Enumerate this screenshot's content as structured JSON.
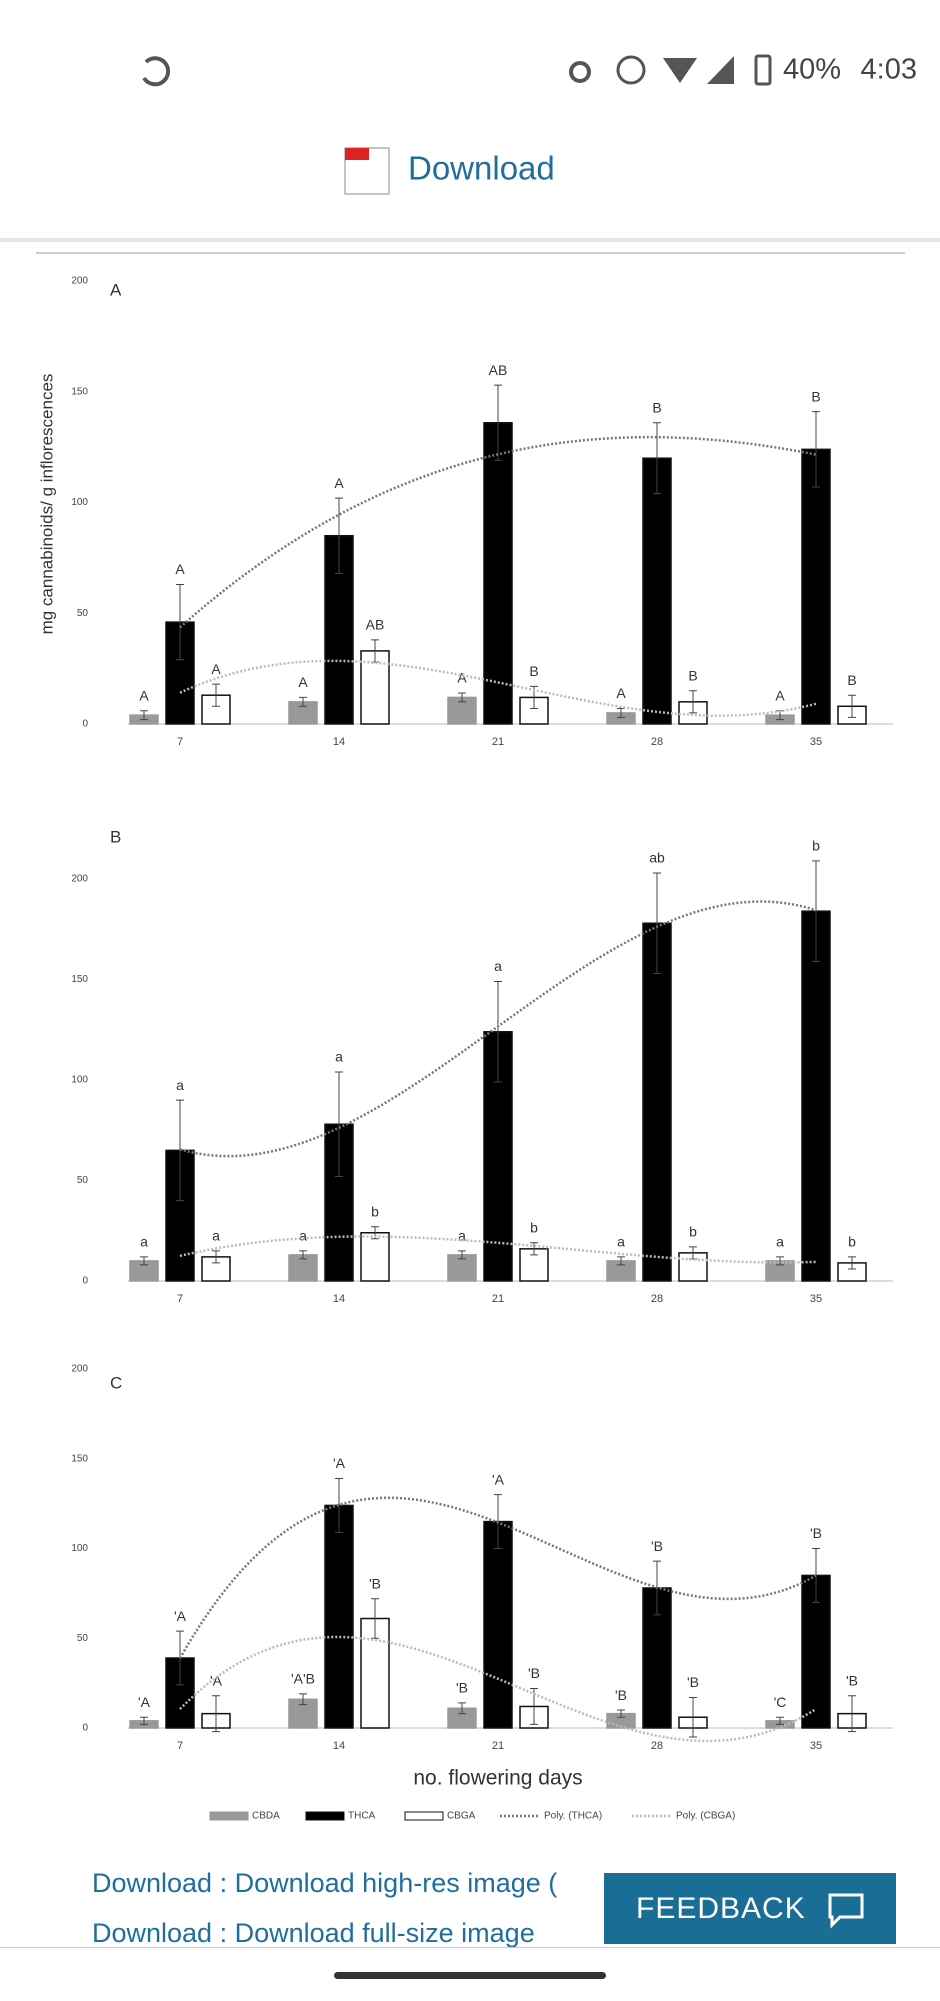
{
  "status_bar": {
    "battery": "40%",
    "time": "4:03"
  },
  "header": {
    "download": "Download"
  },
  "figure": {
    "type": "bar",
    "y_axis_label": "mg cannabinoids/ g inflorescences",
    "x_axis_label": "no. flowering days",
    "legend": [
      "CBDA",
      "THCA",
      "CBGA",
      "Poly. (THCA)",
      "Poly. (CBGA)"
    ],
    "trend_colors": [
      "#777777",
      "#bbbbbb"
    ],
    "panels": [
      {
        "label": "A",
        "ylim": [
          0,
          200
        ],
        "yticks": [
          0,
          50,
          100,
          150,
          200
        ],
        "categories": [
          "7",
          "14",
          "21",
          "28",
          "35"
        ],
        "series": [
          {
            "name": "CBDA",
            "color": "#999999",
            "values": [
              4,
              10,
              12,
              5,
              4
            ],
            "errors": [
              2,
              2,
              2,
              2,
              2
            ],
            "letters": [
              "A",
              "A",
              "A",
              "A",
              "A"
            ]
          },
          {
            "name": "THCA",
            "color": "#000000",
            "values": [
              46,
              85,
              136,
              120,
              124
            ],
            "errors": [
              17,
              17,
              17,
              16,
              17
            ],
            "letters": [
              "A",
              "A",
              "AB",
              "B",
              "B"
            ]
          },
          {
            "name": "CBGA",
            "color": "#ffffff",
            "values": [
              13,
              33,
              12,
              10,
              8
            ],
            "errors": [
              5,
              5,
              5,
              5,
              5
            ],
            "letters": [
              "A",
              "AB",
              "B",
              "B",
              "B"
            ]
          }
        ]
      },
      {
        "label": "B",
        "ylim": [
          0,
          200
        ],
        "yticks": [
          0,
          50,
          100,
          150,
          200
        ],
        "categories": [
          "7",
          "14",
          "21",
          "28",
          "35"
        ],
        "series": [
          {
            "name": "CBDA",
            "color": "#999999",
            "values": [
              10,
              13,
              13,
              10,
              10
            ],
            "errors": [
              2,
              2,
              2,
              2,
              2
            ],
            "letters": [
              "a",
              "a",
              "a",
              "a",
              "a"
            ]
          },
          {
            "name": "THCA",
            "color": "#000000",
            "values": [
              65,
              78,
              124,
              178,
              184
            ],
            "errors": [
              25,
              26,
              25,
              25,
              25
            ],
            "letters": [
              "a",
              "a",
              "a",
              "ab",
              "b"
            ]
          },
          {
            "name": "CBGA",
            "color": "#ffffff",
            "values": [
              12,
              24,
              16,
              14,
              9
            ],
            "errors": [
              3,
              3,
              3,
              3,
              3
            ],
            "letters": [
              "a",
              "b",
              "b",
              "b",
              "b"
            ]
          }
        ]
      },
      {
        "label": "C",
        "ylim": [
          0,
          200
        ],
        "yticks": [
          0,
          50,
          100,
          150,
          200
        ],
        "categories": [
          "7",
          "14",
          "21",
          "28",
          "35"
        ],
        "series": [
          {
            "name": "CBDA",
            "color": "#999999",
            "values": [
              4,
              16,
              11,
              8,
              4
            ],
            "errors": [
              2,
              3,
              3,
              2,
              2
            ],
            "letters": [
              "'A",
              "'A'B",
              "'B",
              "'B",
              "'C"
            ]
          },
          {
            "name": "THCA",
            "color": "#000000",
            "values": [
              39,
              124,
              115,
              78,
              85
            ],
            "errors": [
              15,
              15,
              15,
              15,
              15
            ],
            "letters": [
              "'A",
              "'A",
              "'A",
              "'B",
              "'B"
            ]
          },
          {
            "name": "CBGA",
            "color": "#ffffff",
            "values": [
              8,
              61,
              12,
              6,
              8
            ],
            "errors": [
              10,
              11,
              10,
              11,
              10
            ],
            "letters": [
              "'A",
              "'B",
              "'B",
              "'B",
              "'B"
            ]
          }
        ]
      }
    ]
  },
  "links": [
    "Download : Download high-res image (",
    "Download : Download full-size image"
  ],
  "feedback": "FEEDBACK"
}
